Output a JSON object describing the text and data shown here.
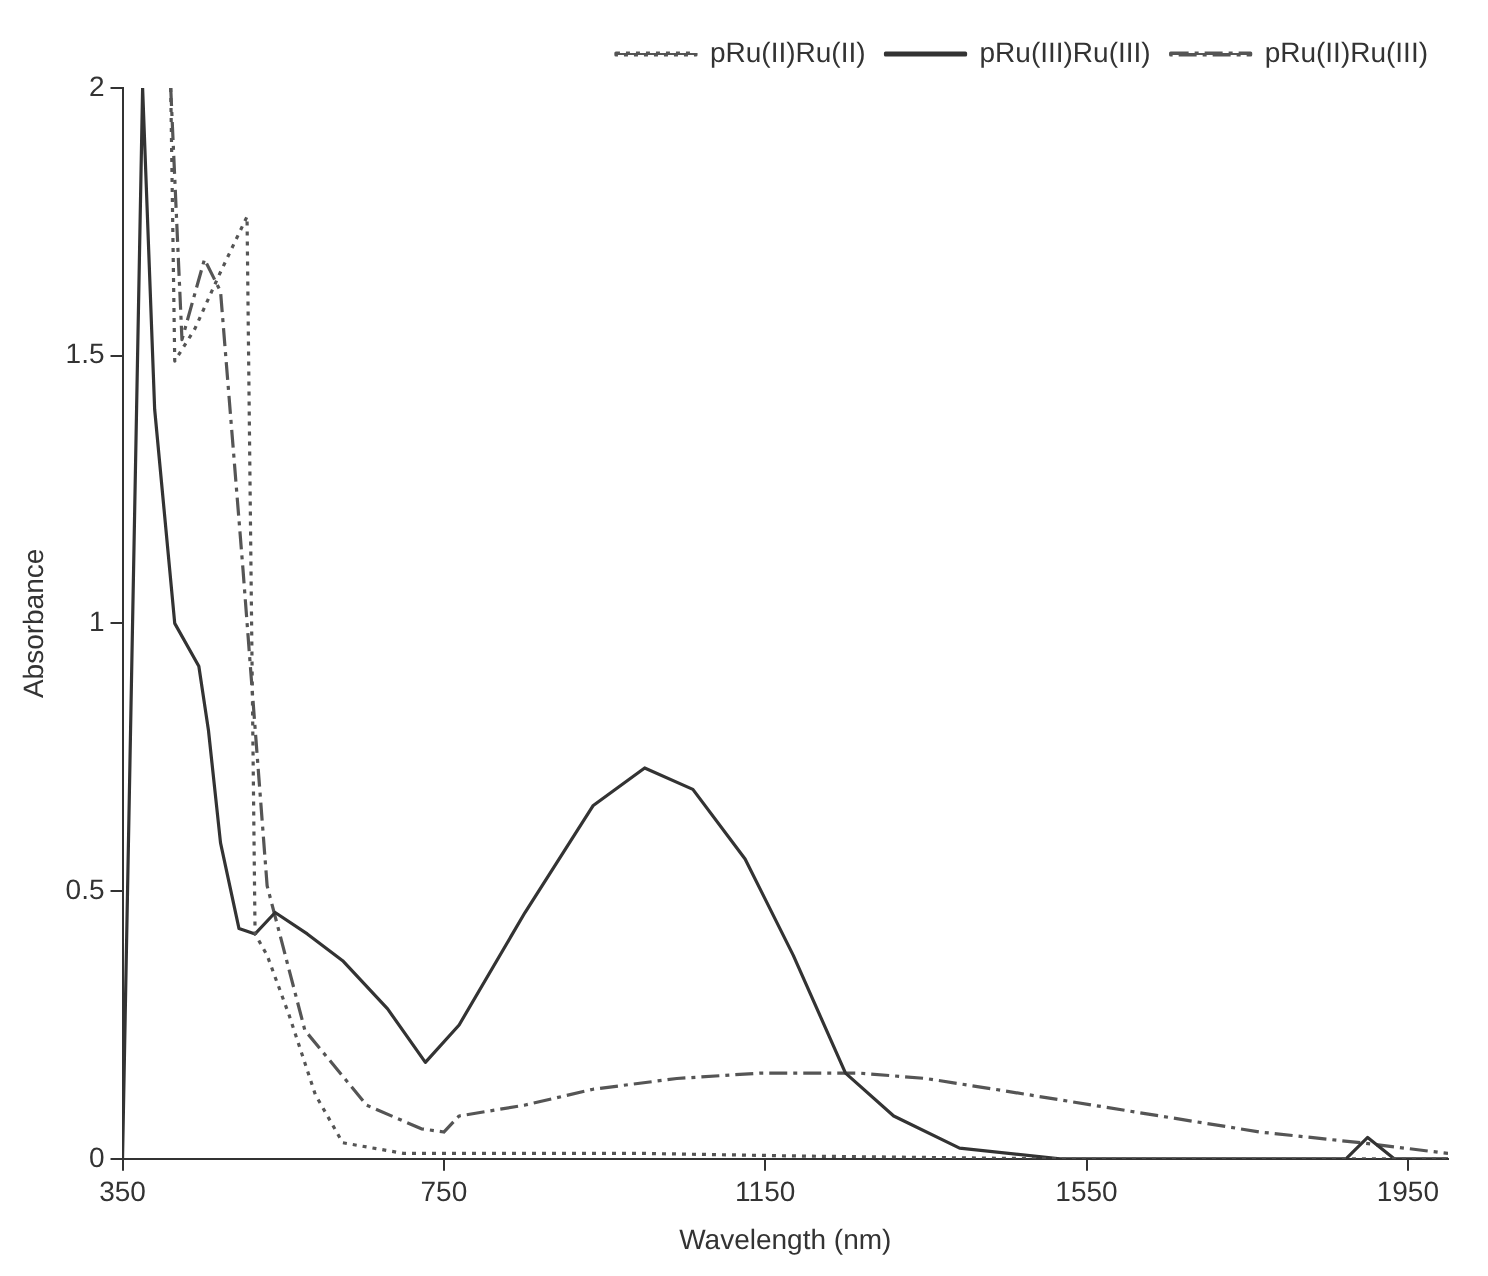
{
  "chart_data": {
    "type": "line",
    "xlabel": "Wavelength (nm)",
    "ylabel": "Absorbance",
    "xlim": [
      350,
      2000
    ],
    "xticks": [
      350,
      750,
      1150,
      1550,
      1950
    ],
    "ylim": [
      0,
      2
    ],
    "yticks": [
      0,
      0.5,
      1,
      1.5,
      2
    ],
    "grid": false,
    "legend": "top right",
    "marker": "none",
    "series": [
      {
        "name": "pRu(II)Ru(II)",
        "color": "#555555",
        "line_style": "dotted",
        "x": [
          410,
          415,
          440,
          470,
          505,
          515,
          530,
          557,
          590,
          624,
          700,
          800,
          1000,
          1200,
          1500,
          1800,
          2000
        ],
        "values": [
          2,
          1.49,
          1.55,
          1.65,
          1.76,
          0.42,
          0.38,
          0.27,
          0.12,
          0.03,
          0.01,
          0.01,
          0.01,
          0.005,
          0,
          0,
          0
        ]
      },
      {
        "name": "pRu(III)Ru(III)",
        "color": "#333333",
        "line_style": "solid",
        "x": [
          350,
          375,
          390,
          415,
          445,
          457,
          472,
          495,
          515,
          540,
          580,
          624,
          680,
          727,
          769,
          851,
          936,
          1000,
          1060,
          1125,
          1185,
          1250,
          1310,
          1392,
          1517,
          1700,
          1873,
          1900,
          1933,
          2000
        ],
        "values": [
          0,
          2,
          1.4,
          1.0,
          0.92,
          0.8,
          0.59,
          0.43,
          0.42,
          0.46,
          0.42,
          0.37,
          0.28,
          0.18,
          0.25,
          0.46,
          0.66,
          0.73,
          0.69,
          0.56,
          0.38,
          0.16,
          0.08,
          0.02,
          0,
          0,
          0,
          0.04,
          0,
          0
        ]
      },
      {
        "name": "pRu(II)Ru(III)",
        "color": "#555555",
        "line_style": "dashdot",
        "x": [
          410,
          424,
          452,
          472,
          500,
          530,
          577,
          654,
          722,
          750,
          769,
          850,
          936,
          1040,
          1143,
          1268,
          1350,
          1435,
          1600,
          1766,
          1891,
          2000
        ],
        "values": [
          2,
          1.53,
          1.68,
          1.62,
          1.1,
          0.51,
          0.24,
          0.1,
          0.056,
          0.05,
          0.08,
          0.1,
          0.13,
          0.15,
          0.16,
          0.16,
          0.15,
          0.13,
          0.09,
          0.05,
          0.03,
          0.01
        ]
      }
    ]
  }
}
